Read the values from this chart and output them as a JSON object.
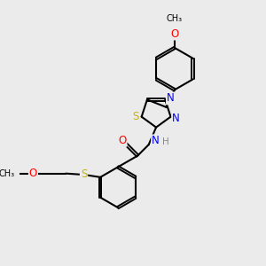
{
  "background_color": "#ebebeb",
  "bond_color": "#000000",
  "atom_colors": {
    "S": "#c8b400",
    "N": "#0000ff",
    "O": "#ff0000",
    "H": "#888888",
    "C": "#000000"
  },
  "font_size_atom": 8.5,
  "fig_width": 3.0,
  "fig_height": 3.0,
  "xlim": [
    0,
    10
  ],
  "ylim": [
    0,
    10
  ]
}
